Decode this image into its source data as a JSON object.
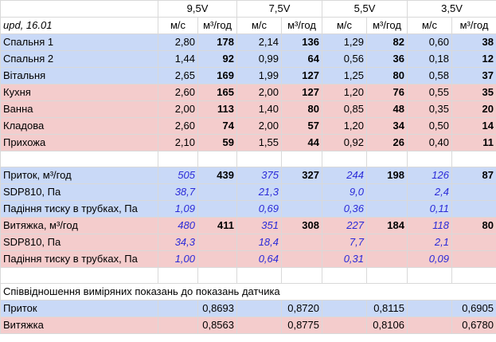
{
  "voltages": [
    "9,5V",
    "7,5V",
    "5,5V",
    "3,5V"
  ],
  "header": {
    "date": "upd, 16.01",
    "unit_speed": "м/с",
    "unit_flow": "м³/год"
  },
  "rooms": [
    {
      "name": "Спальня 1",
      "v": [
        [
          "2,80",
          "178"
        ],
        [
          "2,14",
          "136"
        ],
        [
          "1,29",
          "82"
        ],
        [
          "0,60",
          "38"
        ]
      ]
    },
    {
      "name": "Спальня 2",
      "v": [
        [
          "1,44",
          "92"
        ],
        [
          "0,99",
          "64"
        ],
        [
          "0,56",
          "36"
        ],
        [
          "0,18",
          "12"
        ]
      ]
    },
    {
      "name": "Вітальня",
      "v": [
        [
          "2,65",
          "169"
        ],
        [
          "1,99",
          "127"
        ],
        [
          "1,25",
          "80"
        ],
        [
          "0,58",
          "37"
        ]
      ]
    },
    {
      "name": "Кухня",
      "v": [
        [
          "2,60",
          "165"
        ],
        [
          "2,00",
          "127"
        ],
        [
          "1,20",
          "76"
        ],
        [
          "0,55",
          "35"
        ]
      ]
    },
    {
      "name": "Ванна",
      "v": [
        [
          "2,00",
          "113"
        ],
        [
          "1,40",
          "80"
        ],
        [
          "0,85",
          "48"
        ],
        [
          "0,35",
          "20"
        ]
      ]
    },
    {
      "name": "Кладова",
      "v": [
        [
          "2,60",
          "74"
        ],
        [
          "2,00",
          "57"
        ],
        [
          "1,20",
          "34"
        ],
        [
          "0,50",
          "14"
        ]
      ]
    },
    {
      "name": "Прихожа",
      "v": [
        [
          "2,10",
          "59"
        ],
        [
          "1,55",
          "44"
        ],
        [
          "0,92",
          "26"
        ],
        [
          "0,40",
          "11"
        ]
      ]
    }
  ],
  "supply": {
    "flow_label": "Приток, м³/год",
    "flow": [
      [
        "505",
        "439"
      ],
      [
        "375",
        "327"
      ],
      [
        "244",
        "198"
      ],
      [
        "126",
        "87"
      ]
    ],
    "sdp_label": "SDP810, Па",
    "sdp": [
      "38,7",
      "21,3",
      "9,0",
      "2,4"
    ],
    "drop_label": "Падіння тиску в трубках, Па",
    "drop": [
      "1,09",
      "0,69",
      "0,36",
      "0,11"
    ]
  },
  "exhaust": {
    "flow_label": "Витяжка, м³/год",
    "flow": [
      [
        "480",
        "411"
      ],
      [
        "351",
        "308"
      ],
      [
        "227",
        "184"
      ],
      [
        "118",
        "80"
      ]
    ],
    "sdp_label": "SDP810, Па",
    "sdp": [
      "34,3",
      "18,4",
      "7,7",
      "2,1"
    ],
    "drop_label": "Падіння тиску в трубках, Па",
    "drop": [
      "1,00",
      "0,64",
      "0,31",
      "0,09"
    ]
  },
  "ratio": {
    "title": "Співвідношення виміряних показань до показань датчика",
    "supply_label": "Приток",
    "supply": [
      "0,8693",
      "0,8720",
      "0,8115",
      "0,6905"
    ],
    "exhaust_label": "Витяжка",
    "exhaust": [
      "0,8563",
      "0,8775",
      "0,8106",
      "0,6780"
    ]
  }
}
